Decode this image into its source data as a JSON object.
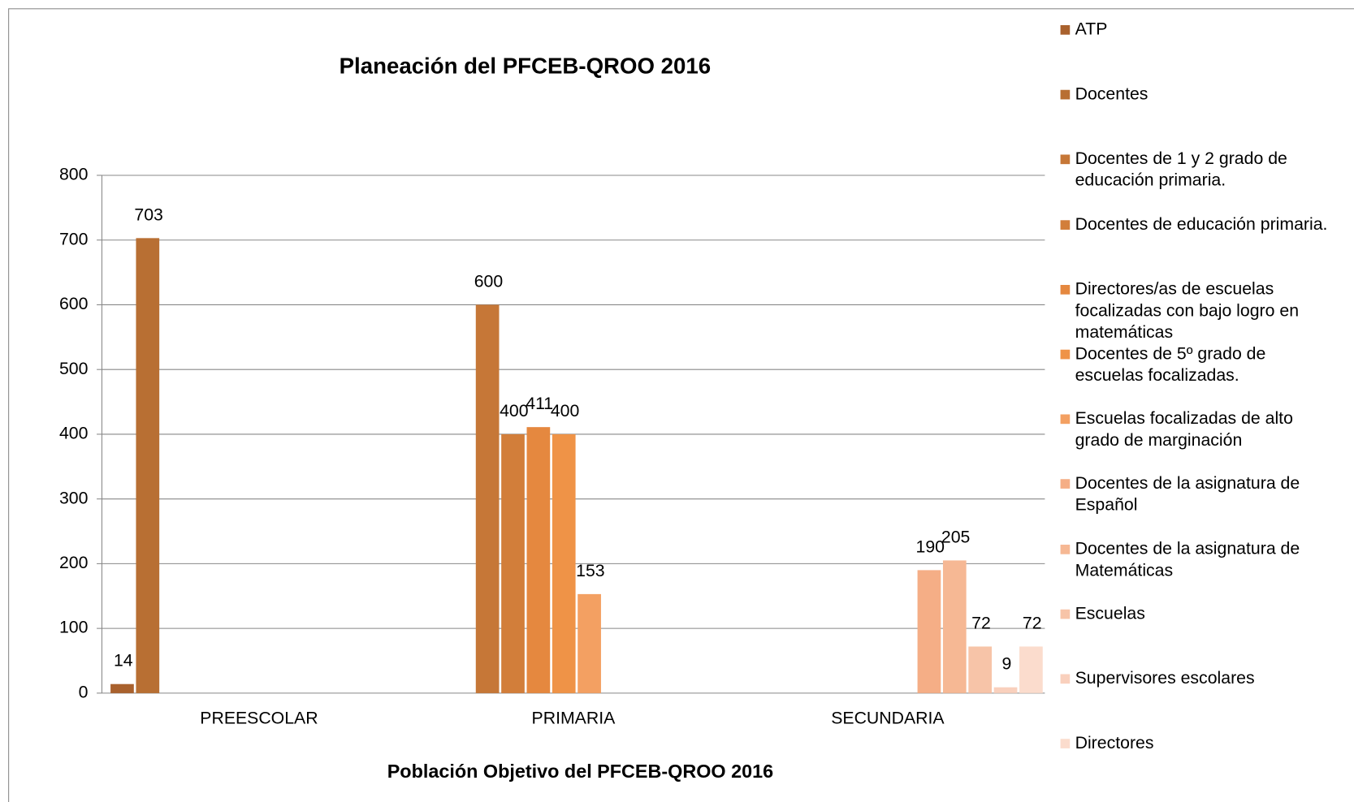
{
  "chart_data": {
    "type": "bar",
    "title": "Planeación del PFCEB-QROO 2016",
    "x_label": "Población Objetivo del PFCEB-QROO 2016",
    "categories": [
      "PREESCOLAR",
      "PRIMARIA",
      "SECUNDARIA"
    ],
    "ylim": [
      0,
      800
    ],
    "yticks": [
      0,
      100,
      200,
      300,
      400,
      500,
      600,
      700,
      800
    ],
    "grid": true,
    "legend": "right",
    "series": [
      {
        "name": "ATP",
        "color": "#a9612d",
        "values": [
          14,
          null,
          null
        ]
      },
      {
        "name": "Docentes",
        "color": "#b86f33",
        "values": [
          703,
          null,
          null
        ]
      },
      {
        "name": "Docentes de 1 y 2 grado de educación primaria.",
        "color": "#c67737",
        "values": [
          null,
          600,
          null
        ]
      },
      {
        "name": "Docentes de educación primaria.",
        "color": "#d27e3a",
        "values": [
          null,
          400,
          null
        ]
      },
      {
        "name": "Directores/as de escuelas focalizadas con bajo logro en matemáticas",
        "color": "#e5883f",
        "values": [
          null,
          411,
          null
        ]
      },
      {
        "name": "Docentes de 5º grado de escuelas focalizadas.",
        "color": "#ef9347",
        "values": [
          null,
          400,
          null
        ]
      },
      {
        "name": "Escuelas focalizadas de alto grado de marginación",
        "color": "#f3a062",
        "values": [
          null,
          153,
          null
        ]
      },
      {
        "name": "Docentes de la asignatura de Español",
        "color": "#f5ae86",
        "values": [
          null,
          null,
          190
        ]
      },
      {
        "name": "Docentes de la asignatura de Matemáticas",
        "color": "#f6b894",
        "values": [
          null,
          null,
          205
        ]
      },
      {
        "name": "Escuelas",
        "color": "#f7c4a8",
        "values": [
          null,
          null,
          72
        ]
      },
      {
        "name": "Supervisores escolares",
        "color": "#f9d0bd",
        "values": [
          null,
          null,
          9
        ]
      },
      {
        "name": "Directores",
        "color": "#fbdccd",
        "values": [
          null,
          null,
          72
        ]
      }
    ]
  }
}
